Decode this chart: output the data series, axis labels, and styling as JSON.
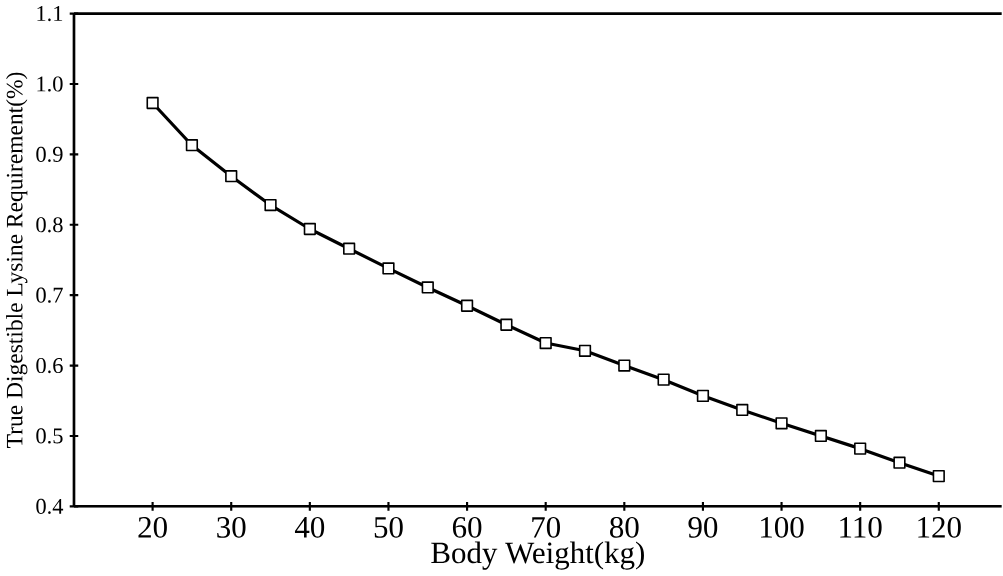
{
  "chart_data": {
    "type": "line",
    "xlabel": "Body Weight(kg)",
    "ylabel": "True Digestible Lysine Requirement(%)",
    "x": [
      20,
      25,
      30,
      35,
      40,
      45,
      50,
      55,
      60,
      65,
      70,
      75,
      80,
      85,
      90,
      95,
      100,
      105,
      110,
      115,
      120
    ],
    "series": [
      {
        "color": "#000000",
        "values": [
          0.973,
          0.913,
          0.869,
          0.828,
          0.794,
          0.766,
          0.738,
          0.711,
          0.685,
          0.658,
          0.632,
          0.621,
          0.6,
          0.58,
          0.557,
          0.537,
          0.518,
          0.5,
          0.482,
          0.462,
          0.443
        ]
      }
    ],
    "xlim": [
      10,
      128
    ],
    "ylim": [
      0.4,
      1.1
    ],
    "xticks": [
      20,
      30,
      40,
      50,
      60,
      70,
      80,
      90,
      100,
      110,
      120
    ],
    "yticks": [
      0.4,
      0.5,
      0.6,
      0.7,
      0.8,
      0.9,
      {
        "value": 1.0,
        "label": "1.0"
      },
      1.1
    ],
    "marker": "square",
    "line_style": "solid",
    "grid": false
  }
}
